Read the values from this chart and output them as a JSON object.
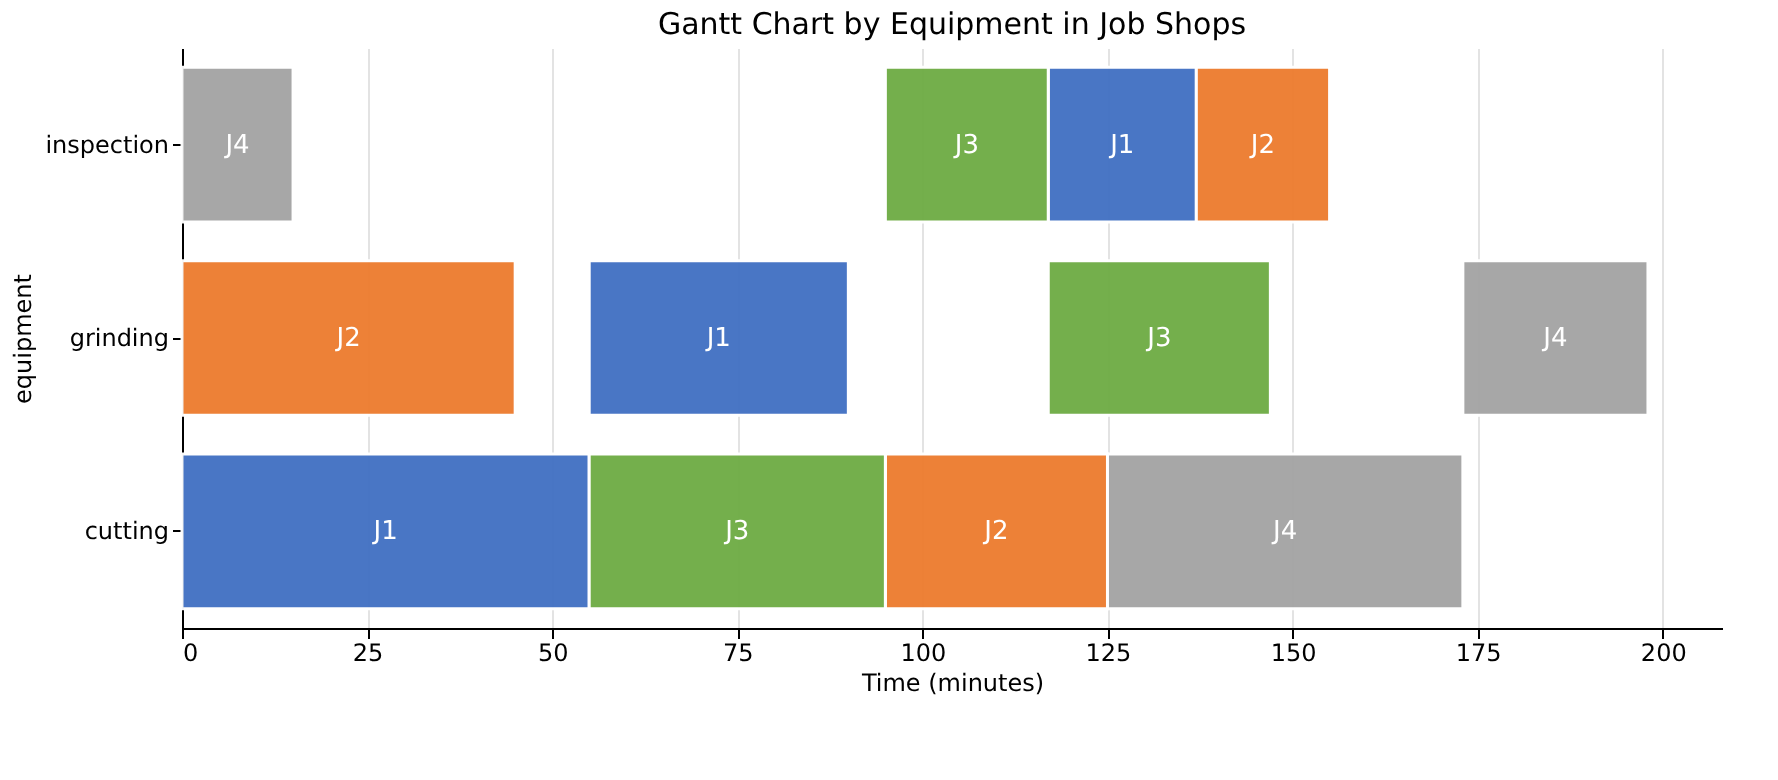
{
  "chart_data": {
    "type": "bar",
    "orientation": "horizontal",
    "title": "Gantt Chart by Equipment in Job Shops",
    "xlabel": "Time (minutes)",
    "ylabel": "equipment",
    "categories": [
      "inspection",
      "grinding",
      "cutting"
    ],
    "series": [
      {
        "name": "J1",
        "color": "#4472c4",
        "base": [
          117,
          55,
          0
        ],
        "values": [
          20,
          35,
          55
        ]
      },
      {
        "name": "J2",
        "color": "#ed7d31",
        "base": [
          137,
          0,
          95
        ],
        "values": [
          18,
          45,
          30
        ]
      },
      {
        "name": "J3",
        "color": "#70ad47",
        "base": [
          95,
          117,
          55
        ],
        "values": [
          22,
          30,
          40
        ]
      },
      {
        "name": "J4",
        "color": "#a5a5a5",
        "base": [
          0,
          173,
          125
        ],
        "values": [
          15,
          25,
          48
        ]
      }
    ],
    "xlim": [
      0,
      208
    ],
    "xticks": [
      0,
      25,
      50,
      75,
      100,
      125,
      150,
      175,
      200
    ],
    "grid": "x",
    "legend": false
  }
}
